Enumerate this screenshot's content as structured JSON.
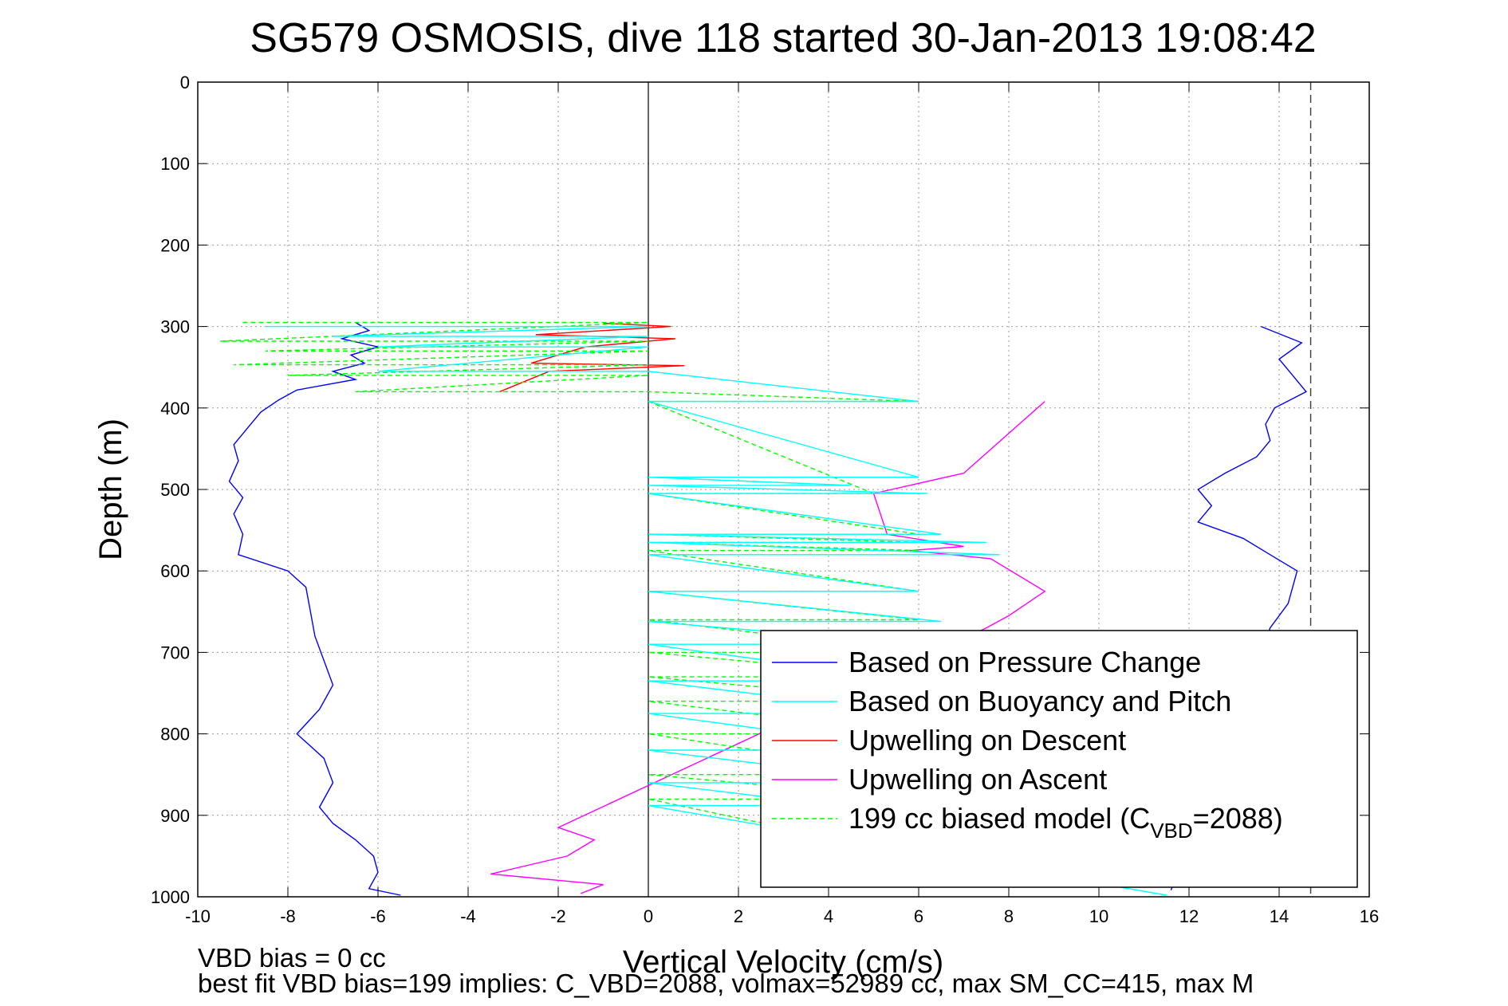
{
  "chart_data": {
    "type": "line",
    "title": "SG579 OSMOSIS, dive 118 started 30-Jan-2013 19:08:42",
    "xlabel": "Vertical Velocity (cm/s)",
    "ylabel": "Depth (m)",
    "xlim": [
      -10,
      16
    ],
    "ylim": [
      1000,
      0
    ],
    "y_reversed": true,
    "grid": true,
    "x_ticks": [
      -10,
      -8,
      -6,
      -4,
      -2,
      0,
      2,
      4,
      6,
      8,
      10,
      12,
      14,
      16
    ],
    "x_tick_labels": [
      "-10",
      "-8",
      "-6",
      "-4",
      "-2",
      "0",
      "2",
      "4",
      "6",
      "8",
      "10",
      "12",
      "14",
      "16"
    ],
    "y_ticks": [
      0,
      100,
      200,
      300,
      400,
      500,
      600,
      700,
      800,
      900,
      1000
    ],
    "y_tick_labels": [
      "0",
      "100",
      "200",
      "300",
      "400",
      "500",
      "600",
      "700",
      "800",
      "900",
      "1000"
    ],
    "zero_line_x": 0,
    "dashed_vertical_x": 14.7,
    "legend_position": "bottom-right",
    "legend": [
      {
        "label": "Based on Pressure Change",
        "color": "#0000ff",
        "style": "solid"
      },
      {
        "label": "Based on Buoyancy and Pitch",
        "color": "#00ffff",
        "style": "solid"
      },
      {
        "label": "Upwelling on Descent",
        "color": "#ff0000",
        "style": "solid"
      },
      {
        "label": "Upwelling on Ascent",
        "color": "#ff00ff",
        "style": "solid"
      },
      {
        "label": "199 cc biased model (C",
        "sub": "VBD",
        "suffix": "=2088)",
        "color": "#00ff00",
        "style": "dashed"
      }
    ],
    "series": [
      {
        "name": "Based on Pressure Change",
        "segment": "descent",
        "color": "#0000ff",
        "points": [
          [
            -6.5,
            295
          ],
          [
            -6.2,
            305
          ],
          [
            -6.8,
            315
          ],
          [
            -6.0,
            325
          ],
          [
            -6.6,
            335
          ],
          [
            -6.3,
            345
          ],
          [
            -7.0,
            355
          ],
          [
            -6.5,
            365
          ],
          [
            -7.8,
            378
          ],
          [
            -8.2,
            390
          ],
          [
            -8.6,
            405
          ],
          [
            -8.9,
            425
          ],
          [
            -9.2,
            445
          ],
          [
            -9.1,
            465
          ],
          [
            -9.3,
            490
          ],
          [
            -9.0,
            510
          ],
          [
            -9.2,
            530
          ],
          [
            -9.0,
            555
          ],
          [
            -9.1,
            580
          ],
          [
            -8.0,
            600
          ],
          [
            -7.6,
            620
          ],
          [
            -7.5,
            650
          ],
          [
            -7.4,
            680
          ],
          [
            -7.2,
            710
          ],
          [
            -7.0,
            740
          ],
          [
            -7.3,
            770
          ],
          [
            -7.8,
            800
          ],
          [
            -7.2,
            830
          ],
          [
            -7.0,
            860
          ],
          [
            -7.3,
            890
          ],
          [
            -7.0,
            910
          ],
          [
            -6.5,
            930
          ],
          [
            -6.1,
            950
          ],
          [
            -6.0,
            970
          ],
          [
            -6.2,
            990
          ],
          [
            -5.5,
            998
          ]
        ]
      },
      {
        "name": "Based on Pressure Change",
        "segment": "ascent",
        "color": "#0000ff",
        "points": [
          [
            11.6,
            992
          ],
          [
            13.8,
            670
          ],
          [
            14.2,
            640
          ],
          [
            14.4,
            600
          ],
          [
            13.8,
            580
          ],
          [
            13.2,
            560
          ],
          [
            12.2,
            540
          ],
          [
            12.5,
            520
          ],
          [
            12.2,
            500
          ],
          [
            12.8,
            480
          ],
          [
            13.5,
            460
          ],
          [
            13.8,
            440
          ],
          [
            13.7,
            420
          ],
          [
            13.9,
            400
          ],
          [
            14.6,
            380
          ],
          [
            14.3,
            360
          ],
          [
            14.0,
            340
          ],
          [
            14.5,
            320
          ],
          [
            13.6,
            300
          ]
        ]
      },
      {
        "name": "Upwelling on Descent",
        "color": "#ff0000",
        "points": [
          [
            -1.0,
            296
          ],
          [
            0.5,
            300
          ],
          [
            -2.5,
            310
          ],
          [
            0.6,
            315
          ],
          [
            -1.4,
            325
          ],
          [
            -2.6,
            345
          ],
          [
            0.8,
            348
          ],
          [
            -2.2,
            355
          ],
          [
            -3.3,
            380
          ]
        ]
      },
      {
        "name": "Upwelling on Ascent",
        "color": "#ff00ff",
        "points": [
          [
            8.8,
            392
          ],
          [
            7.0,
            480
          ],
          [
            5.0,
            505
          ],
          [
            5.3,
            555
          ],
          [
            7.0,
            570
          ],
          [
            5.8,
            575
          ],
          [
            7.6,
            585
          ],
          [
            8.8,
            625
          ],
          [
            8.0,
            655
          ],
          [
            7.5,
            670
          ],
          [
            -2.0,
            915
          ],
          [
            -1.2,
            930
          ],
          [
            -1.8,
            950
          ],
          [
            -3.5,
            972
          ],
          [
            -1.0,
            985
          ],
          [
            -1.5,
            996
          ]
        ]
      },
      {
        "name": "199 cc biased model",
        "color": "#00ff00",
        "style": "dashed",
        "points": [
          [
            -9.0,
            295
          ],
          [
            0,
            295
          ],
          [
            -9.5,
            318
          ],
          [
            0,
            318
          ],
          [
            -8.5,
            330
          ],
          [
            0,
            330
          ],
          [
            -9.2,
            347
          ],
          [
            0,
            347
          ],
          [
            -8.0,
            360
          ],
          [
            0,
            360
          ],
          [
            -6.5,
            380
          ],
          [
            0,
            380
          ],
          [
            6.0,
            392
          ],
          [
            0,
            392
          ],
          [
            5.0,
            505
          ],
          [
            0,
            505
          ],
          [
            6.0,
            555
          ],
          [
            0,
            555
          ],
          [
            6.0,
            565
          ],
          [
            0,
            565
          ],
          [
            6.0,
            575
          ],
          [
            0,
            575
          ],
          [
            6.0,
            625
          ],
          [
            0,
            625
          ],
          [
            6.0,
            660
          ],
          [
            0,
            660
          ],
          [
            6.0,
            700
          ],
          [
            0,
            700
          ],
          [
            6.0,
            730
          ],
          [
            0,
            730
          ],
          [
            6.0,
            760
          ],
          [
            0,
            760
          ],
          [
            6.0,
            800
          ],
          [
            0,
            800
          ],
          [
            6.0,
            850
          ],
          [
            0,
            850
          ],
          [
            6.0,
            880
          ],
          [
            0,
            880
          ],
          [
            9.0,
            985
          ]
        ]
      },
      {
        "name": "Based on Buoyancy and Pitch",
        "color": "#00ffff",
        "points": [
          [
            -8.5,
            300
          ],
          [
            0,
            300
          ],
          [
            -7.0,
            312
          ],
          [
            0,
            312
          ],
          [
            -6.0,
            325
          ],
          [
            0,
            325
          ],
          [
            -6.0,
            355
          ],
          [
            0,
            355
          ],
          [
            6.0,
            392
          ],
          [
            0,
            392
          ],
          [
            6.0,
            485
          ],
          [
            0,
            485
          ],
          [
            4.5,
            495
          ],
          [
            0,
            495
          ],
          [
            6.2,
            505
          ],
          [
            0,
            505
          ],
          [
            6.5,
            555
          ],
          [
            0,
            555
          ],
          [
            7.5,
            565
          ],
          [
            0,
            565
          ],
          [
            7.8,
            580
          ],
          [
            0,
            580
          ],
          [
            6.0,
            625
          ],
          [
            0,
            625
          ],
          [
            6.5,
            662
          ],
          [
            0,
            662
          ],
          [
            6.0,
            690
          ],
          [
            0,
            690
          ],
          [
            6.0,
            735
          ],
          [
            0,
            735
          ],
          [
            6.0,
            775
          ],
          [
            0,
            775
          ],
          [
            6.0,
            820
          ],
          [
            0,
            820
          ],
          [
            6.0,
            860
          ],
          [
            0,
            860
          ],
          [
            4.2,
            888
          ],
          [
            0,
            888
          ],
          [
            11.5,
            998
          ]
        ]
      }
    ]
  },
  "footnotes": {
    "line1": "VBD bias = 0 cc",
    "line2": "best fit VBD bias=199 implies: C_VBD=2088, volmax=52989 cc, max SM_CC=415, max M"
  }
}
